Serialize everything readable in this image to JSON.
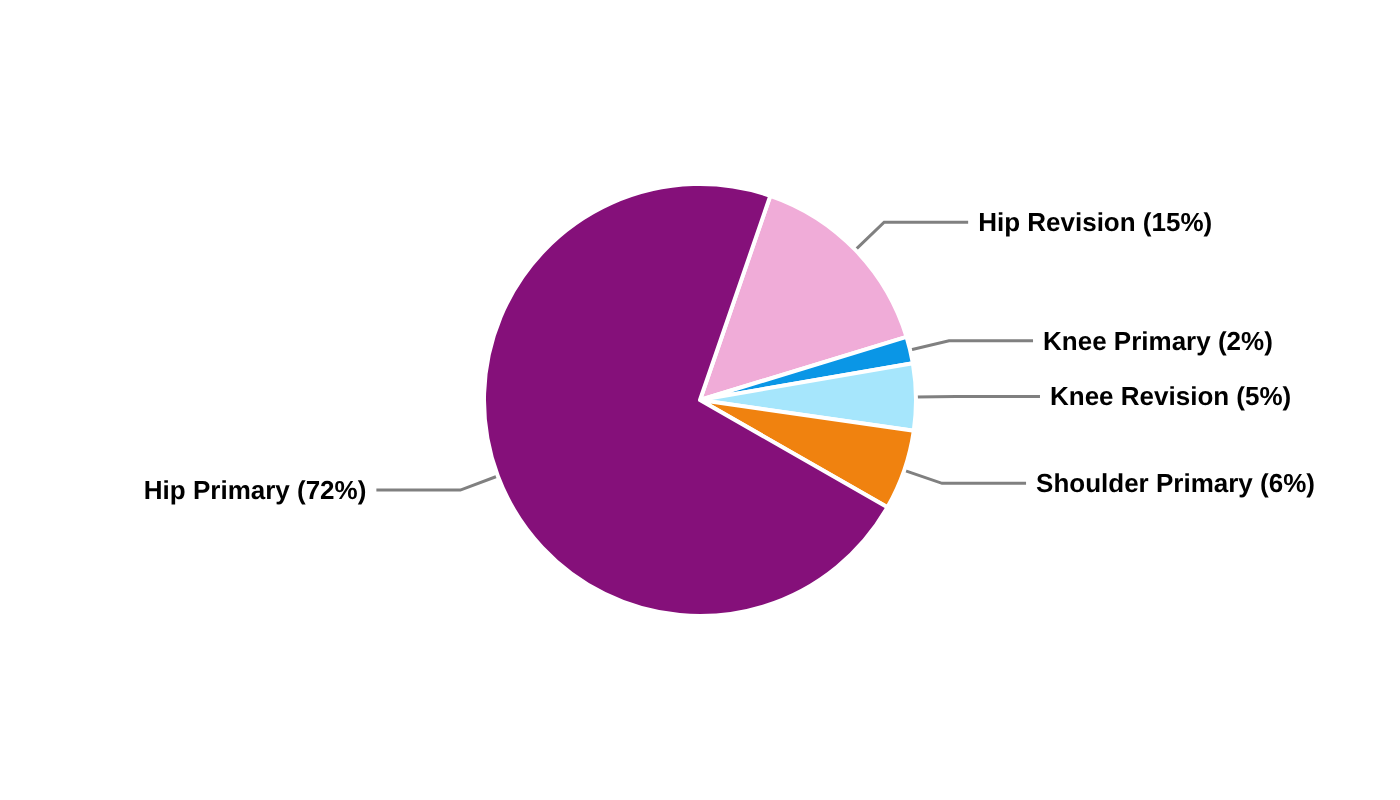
{
  "chart_data": {
    "type": "pie",
    "categories": [
      "Hip Revision",
      "Knee Primary",
      "Knee Revision",
      "Shoulder Primary",
      "Hip Primary"
    ],
    "values": [
      15,
      2,
      5,
      6,
      72
    ],
    "colors": [
      "#f0acd8",
      "#0a96e6",
      "#a6e6fc",
      "#f0820f",
      "#85107a"
    ],
    "value_labels": [
      "(15%)",
      "(2%)",
      "(5%)",
      "(6%)",
      "(72%)"
    ]
  }
}
